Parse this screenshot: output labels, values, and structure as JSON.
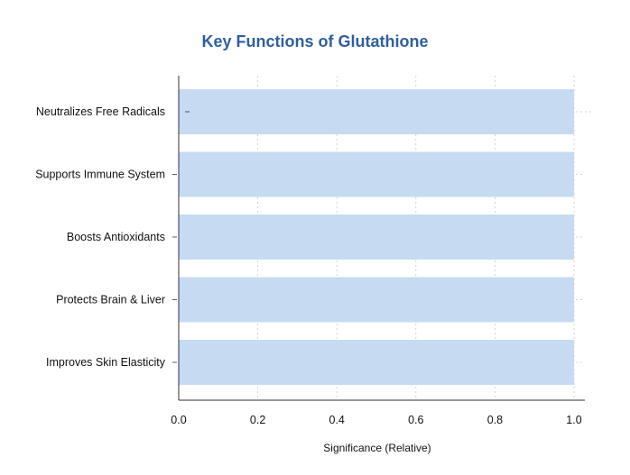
{
  "chart_data": {
    "type": "bar",
    "orientation": "horizontal",
    "title": "Key Functions of Glutathione",
    "xlabel": "Significance (Relative)",
    "ylabel": "",
    "categories": [
      "Neutralizes Free Radicals",
      "Supports Immune System",
      "Boosts Antioxidants",
      "Protects Brain & Liver",
      "Improves Skin Elasticity"
    ],
    "values": [
      1.0,
      1.0,
      1.0,
      1.0,
      1.0
    ],
    "xlim": [
      0,
      1.0
    ],
    "x_ticks": [
      "0.0",
      "0.2",
      "0.4",
      "0.6",
      "0.8",
      "1.0"
    ],
    "grid": true,
    "legend": "none"
  },
  "colors": {
    "title": "#2f5f9e",
    "bar": "#c6dbf2",
    "axis": "#333333",
    "grid": "#c8c8c8",
    "text": "#111111"
  }
}
